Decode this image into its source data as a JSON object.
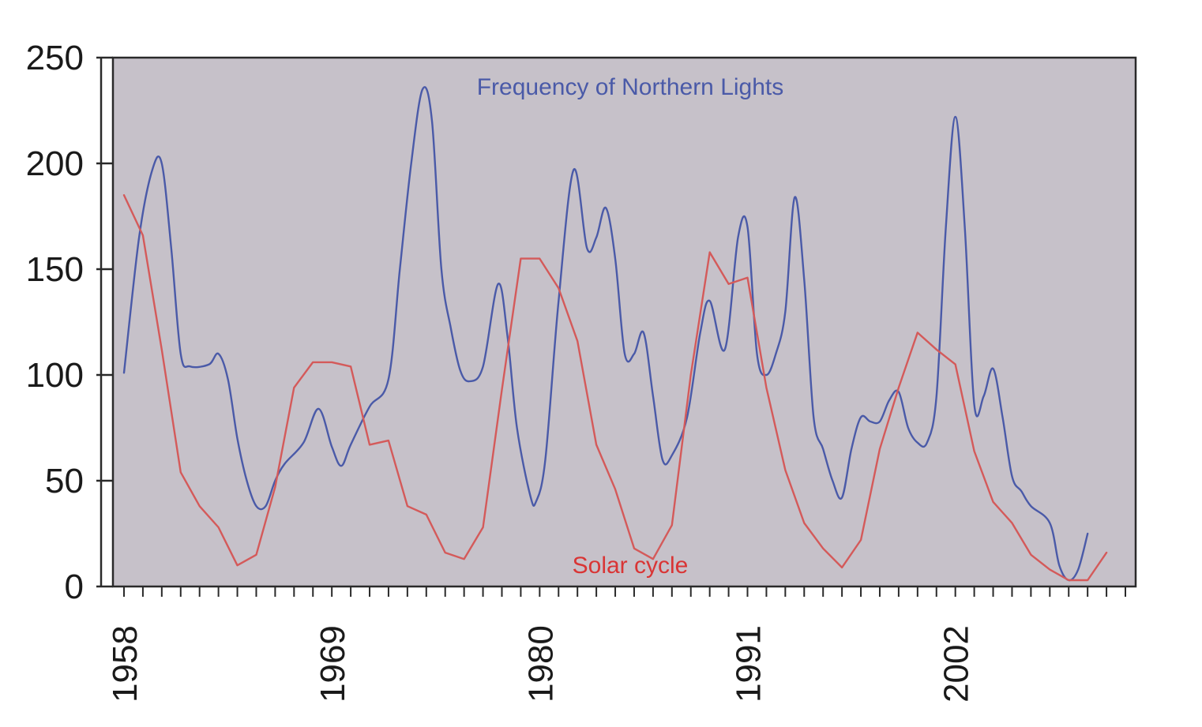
{
  "chart_data": {
    "type": "line",
    "title": "",
    "xlabel": "",
    "ylabel": "",
    "xlim": [
      1958,
      2011
    ],
    "ylim": [
      0,
      250
    ],
    "x_ticks": [
      1958,
      1969,
      1980,
      1991,
      2002
    ],
    "y_ticks": [
      0,
      50,
      100,
      150,
      200,
      250
    ],
    "grid": false,
    "background_color": "#c6c1c9",
    "series": [
      {
        "name": "Frequency of Northern Lights",
        "color": "#4a5aa8",
        "points": [
          [
            1958.0,
            101
          ],
          [
            1958.8,
            165
          ],
          [
            1959.5,
            197
          ],
          [
            1960.0,
            200
          ],
          [
            1960.5,
            160
          ],
          [
            1961.0,
            110
          ],
          [
            1961.5,
            104
          ],
          [
            1962.5,
            105
          ],
          [
            1963.0,
            110
          ],
          [
            1963.5,
            98
          ],
          [
            1964.0,
            70
          ],
          [
            1964.5,
            50
          ],
          [
            1965.0,
            38
          ],
          [
            1965.5,
            38
          ],
          [
            1966.0,
            50
          ],
          [
            1966.5,
            58
          ],
          [
            1967.5,
            68
          ],
          [
            1968.3,
            84
          ],
          [
            1969.0,
            66
          ],
          [
            1969.5,
            57
          ],
          [
            1970.0,
            67
          ],
          [
            1971.0,
            85
          ],
          [
            1972.0,
            98
          ],
          [
            1972.6,
            150
          ],
          [
            1973.2,
            200
          ],
          [
            1973.8,
            235
          ],
          [
            1974.3,
            220
          ],
          [
            1974.8,
            150
          ],
          [
            1975.3,
            122
          ],
          [
            1975.8,
            102
          ],
          [
            1976.3,
            97
          ],
          [
            1977.0,
            104
          ],
          [
            1977.8,
            143
          ],
          [
            1978.3,
            118
          ],
          [
            1978.8,
            75
          ],
          [
            1979.5,
            43
          ],
          [
            1979.8,
            40
          ],
          [
            1980.3,
            60
          ],
          [
            1981.0,
            135
          ],
          [
            1981.8,
            197
          ],
          [
            1982.5,
            160
          ],
          [
            1983.0,
            165
          ],
          [
            1983.5,
            179
          ],
          [
            1984.0,
            155
          ],
          [
            1984.5,
            110
          ],
          [
            1985.0,
            110
          ],
          [
            1985.5,
            120
          ],
          [
            1986.0,
            90
          ],
          [
            1986.5,
            60
          ],
          [
            1987.0,
            62
          ],
          [
            1987.8,
            80
          ],
          [
            1988.5,
            120
          ],
          [
            1989.0,
            135
          ],
          [
            1989.8,
            112
          ],
          [
            1990.5,
            165
          ],
          [
            1991.0,
            170
          ],
          [
            1991.5,
            110
          ],
          [
            1992.0,
            100
          ],
          [
            1992.5,
            110
          ],
          [
            1993.0,
            130
          ],
          [
            1993.5,
            184
          ],
          [
            1994.0,
            145
          ],
          [
            1994.5,
            80
          ],
          [
            1995.0,
            65
          ],
          [
            1995.5,
            50
          ],
          [
            1996.0,
            42
          ],
          [
            1996.5,
            65
          ],
          [
            1997.0,
            80
          ],
          [
            1997.5,
            78
          ],
          [
            1998.0,
            78
          ],
          [
            1998.5,
            88
          ],
          [
            1999.0,
            92
          ],
          [
            1999.5,
            75
          ],
          [
            2000.0,
            68
          ],
          [
            2000.5,
            68
          ],
          [
            2001.0,
            90
          ],
          [
            2001.5,
            170
          ],
          [
            2002.0,
            222
          ],
          [
            2002.5,
            170
          ],
          [
            2003.0,
            86
          ],
          [
            2003.5,
            90
          ],
          [
            2004.0,
            103
          ],
          [
            2004.5,
            80
          ],
          [
            2005.0,
            52
          ],
          [
            2005.5,
            45
          ],
          [
            2006.0,
            38
          ],
          [
            2007.0,
            30
          ],
          [
            2007.5,
            10
          ],
          [
            2008.0,
            3
          ],
          [
            2008.5,
            8
          ],
          [
            2009.0,
            25
          ]
        ]
      },
      {
        "name": "Solar cycle",
        "color": "#d45a5a",
        "points": [
          [
            1958,
            185
          ],
          [
            1959,
            166
          ],
          [
            1960,
            112
          ],
          [
            1961,
            54
          ],
          [
            1962,
            38
          ],
          [
            1963,
            28
          ],
          [
            1964,
            10
          ],
          [
            1965,
            15
          ],
          [
            1966,
            47
          ],
          [
            1967,
            94
          ],
          [
            1968,
            106
          ],
          [
            1969,
            106
          ],
          [
            1970,
            104
          ],
          [
            1971,
            67
          ],
          [
            1972,
            69
          ],
          [
            1973,
            38
          ],
          [
            1974,
            34
          ],
          [
            1975,
            16
          ],
          [
            1976,
            13
          ],
          [
            1977,
            28
          ],
          [
            1978,
            93
          ],
          [
            1979,
            155
          ],
          [
            1980,
            155
          ],
          [
            1981,
            141
          ],
          [
            1982,
            116
          ],
          [
            1983,
            67
          ],
          [
            1984,
            46
          ],
          [
            1985,
            18
          ],
          [
            1986,
            13
          ],
          [
            1987,
            29
          ],
          [
            1988,
            100
          ],
          [
            1989,
            158
          ],
          [
            1990,
            143
          ],
          [
            1991,
            146
          ],
          [
            1992,
            94
          ],
          [
            1993,
            55
          ],
          [
            1994,
            30
          ],
          [
            1995,
            18
          ],
          [
            1996,
            9
          ],
          [
            1997,
            22
          ],
          [
            1998,
            65
          ],
          [
            1999,
            94
          ],
          [
            2000,
            120
          ],
          [
            2001,
            112
          ],
          [
            2002,
            105
          ],
          [
            2003,
            64
          ],
          [
            2004,
            40
          ],
          [
            2005,
            30
          ],
          [
            2006,
            15
          ],
          [
            2007,
            8
          ],
          [
            2008,
            3
          ],
          [
            2009,
            3
          ],
          [
            2010,
            16
          ]
        ]
      }
    ]
  }
}
